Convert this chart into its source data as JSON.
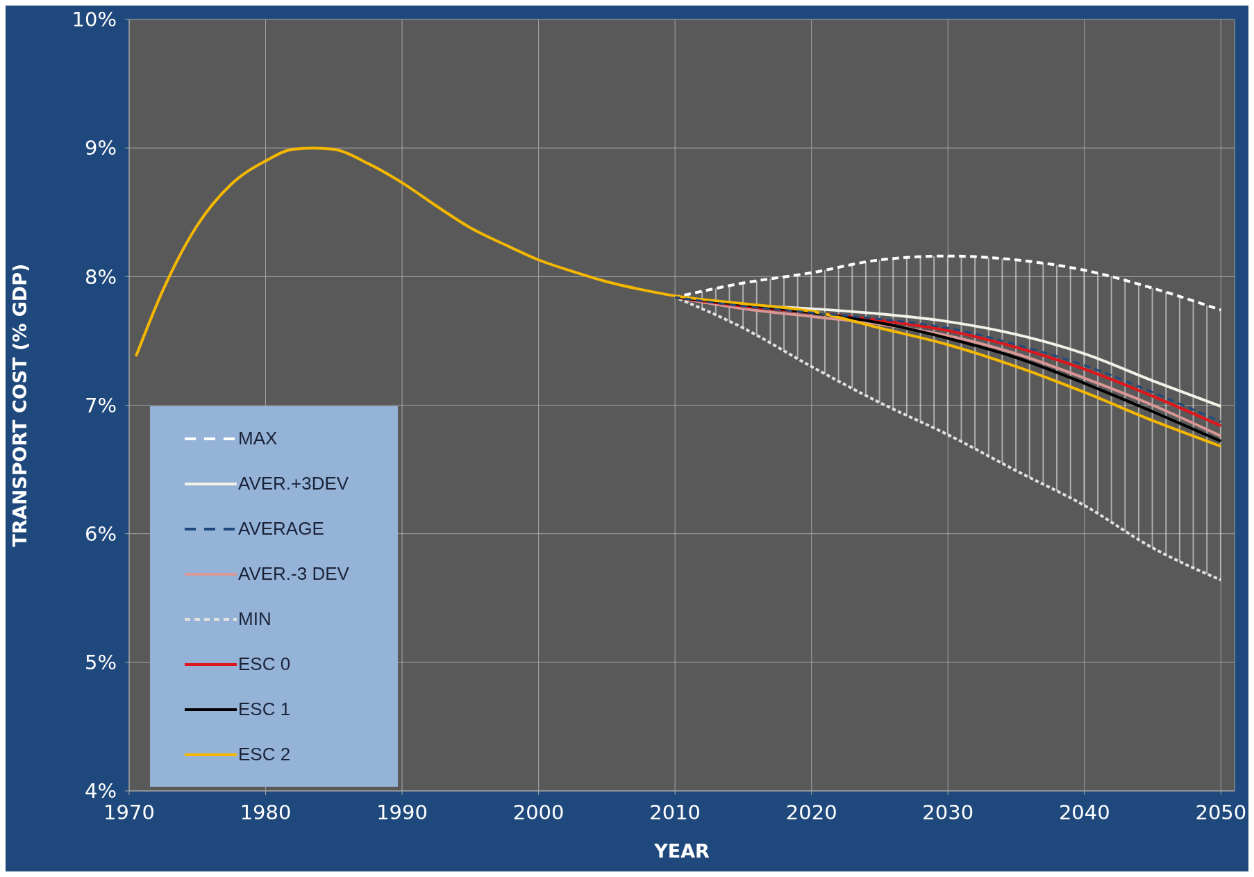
{
  "chart_data": {
    "type": "line",
    "xlabel": "YEAR",
    "ylabel": "TRANSPORT COST  (% GDP)",
    "xlim": [
      1970,
      2051
    ],
    "xticks": [
      1970,
      1980,
      1990,
      2000,
      2010,
      2020,
      2030,
      2040,
      2050
    ],
    "ylim": [
      4,
      10
    ],
    "yticks": [
      {
        "value": 4,
        "label": "4%"
      },
      {
        "value": 5,
        "label": "5%"
      },
      {
        "value": 6,
        "label": "6%"
      },
      {
        "value": 7,
        "label": "7%"
      },
      {
        "value": 8,
        "label": "8%"
      },
      {
        "value": 9,
        "label": "9%"
      },
      {
        "value": 10,
        "label": "10%"
      }
    ],
    "grid": true,
    "legend": "bottom left",
    "series": [
      {
        "name": "MAX",
        "color": "#ffffff",
        "line_style": "dashed",
        "x": [
          2010,
          2015,
          2020,
          2025,
          2030,
          2035,
          2040,
          2045,
          2050
        ],
        "values": [
          7.84,
          7.95,
          8.03,
          8.13,
          8.16,
          8.13,
          8.05,
          7.91,
          7.74
        ]
      },
      {
        "name": "AVER.+3DEV",
        "color": "#f2f2e6",
        "line_style": "solid",
        "x": [
          2010,
          2015,
          2020,
          2025,
          2030,
          2035,
          2040,
          2045,
          2050
        ],
        "values": [
          7.84,
          7.78,
          7.75,
          7.71,
          7.65,
          7.55,
          7.4,
          7.19,
          6.99
        ]
      },
      {
        "name": "AVERAGE",
        "color": "#1f497d",
        "line_style": "dashed",
        "x": [
          2010,
          2015,
          2020,
          2025,
          2030,
          2035,
          2040,
          2045,
          2050
        ],
        "values": [
          7.84,
          7.77,
          7.72,
          7.67,
          7.6,
          7.47,
          7.31,
          7.1,
          6.87
        ],
        "lower": [
          7.84,
          7.6,
          7.3,
          7.02,
          6.77,
          6.49,
          6.22,
          5.89,
          5.64
        ],
        "upper": [
          7.84,
          7.95,
          8.03,
          8.13,
          8.16,
          8.13,
          8.05,
          7.91,
          7.74
        ]
      },
      {
        "name": "AVER.-3 DEV",
        "color": "#d99694",
        "line_style": "solid",
        "x": [
          2010,
          2015,
          2020,
          2025,
          2030,
          2035,
          2040,
          2045,
          2050
        ],
        "values": [
          7.84,
          7.75,
          7.69,
          7.63,
          7.54,
          7.4,
          7.21,
          7.0,
          6.76
        ]
      },
      {
        "name": "MIN",
        "color": "#e0e0e0",
        "line_style": "dotted",
        "x": [
          2010,
          2015,
          2020,
          2025,
          2030,
          2035,
          2040,
          2045,
          2050
        ],
        "values": [
          7.84,
          7.6,
          7.3,
          7.02,
          6.77,
          6.49,
          6.22,
          5.89,
          5.64
        ]
      },
      {
        "name": "ESC 0",
        "color": "#e0161c",
        "line_style": "solid",
        "x": [
          2010,
          2015,
          2020,
          2025,
          2030,
          2035,
          2040,
          2045,
          2050
        ],
        "values": [
          7.84,
          7.77,
          7.72,
          7.66,
          7.58,
          7.45,
          7.28,
          7.07,
          6.84
        ]
      },
      {
        "name": "ESC 1",
        "color": "#000000",
        "line_style": "solid",
        "x": [
          2010,
          2015,
          2020,
          2025,
          2030,
          2035,
          2040,
          2045,
          2050
        ],
        "values": [
          7.84,
          7.78,
          7.72,
          7.64,
          7.52,
          7.37,
          7.17,
          6.95,
          6.72
        ]
      },
      {
        "name": "ESC 2",
        "color": "#f5b800",
        "line_style": "solid",
        "x": [
          1970.5,
          1972.5,
          1975,
          1977.5,
          1980,
          1982,
          1983.5,
          1985,
          1987.5,
          1990,
          1992.5,
          1995,
          1997.5,
          2000,
          2002.5,
          2005,
          2007.5,
          2010,
          2015,
          2020,
          2025,
          2030,
          2035,
          2040,
          2045,
          2050
        ],
        "values": [
          7.38,
          7.9,
          8.4,
          8.72,
          8.9,
          8.99,
          9.0,
          8.99,
          8.88,
          8.73,
          8.55,
          8.38,
          8.25,
          8.13,
          8.04,
          7.96,
          7.9,
          7.85,
          7.79,
          7.73,
          7.6,
          7.47,
          7.3,
          7.1,
          6.88,
          6.68
        ]
      }
    ]
  }
}
